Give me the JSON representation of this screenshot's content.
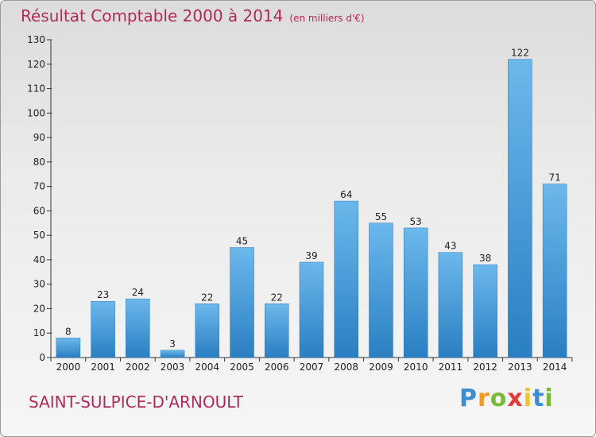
{
  "header": {
    "title": "Résultat Comptable 2000 à 2014",
    "subtitle": "(en milliers d'€)"
  },
  "footer": {
    "city": "SAINT-SULPICE-D'ARNOULT",
    "logo": "Proxiti"
  },
  "colors": {
    "title": "#b02a5a",
    "bar": "#4a9fdc",
    "bar_light": "#69b6ea",
    "bar_dark": "#2d82c4"
  },
  "chart_data": {
    "type": "bar",
    "title": "Résultat Comptable 2000 à 2014",
    "subtitle": "(en milliers d'€)",
    "categories": [
      "2000",
      "2001",
      "2002",
      "2003",
      "2004",
      "2005",
      "2006",
      "2007",
      "2008",
      "2009",
      "2010",
      "2011",
      "2012",
      "2013",
      "2014"
    ],
    "values": [
      8,
      23,
      24,
      3,
      22,
      45,
      22,
      39,
      64,
      55,
      53,
      43,
      38,
      122,
      71
    ],
    "ylim": [
      0,
      130
    ],
    "yticks": [
      0,
      10,
      20,
      30,
      40,
      50,
      60,
      70,
      80,
      90,
      100,
      110,
      120,
      130
    ],
    "grid": false,
    "data_labels": true
  }
}
